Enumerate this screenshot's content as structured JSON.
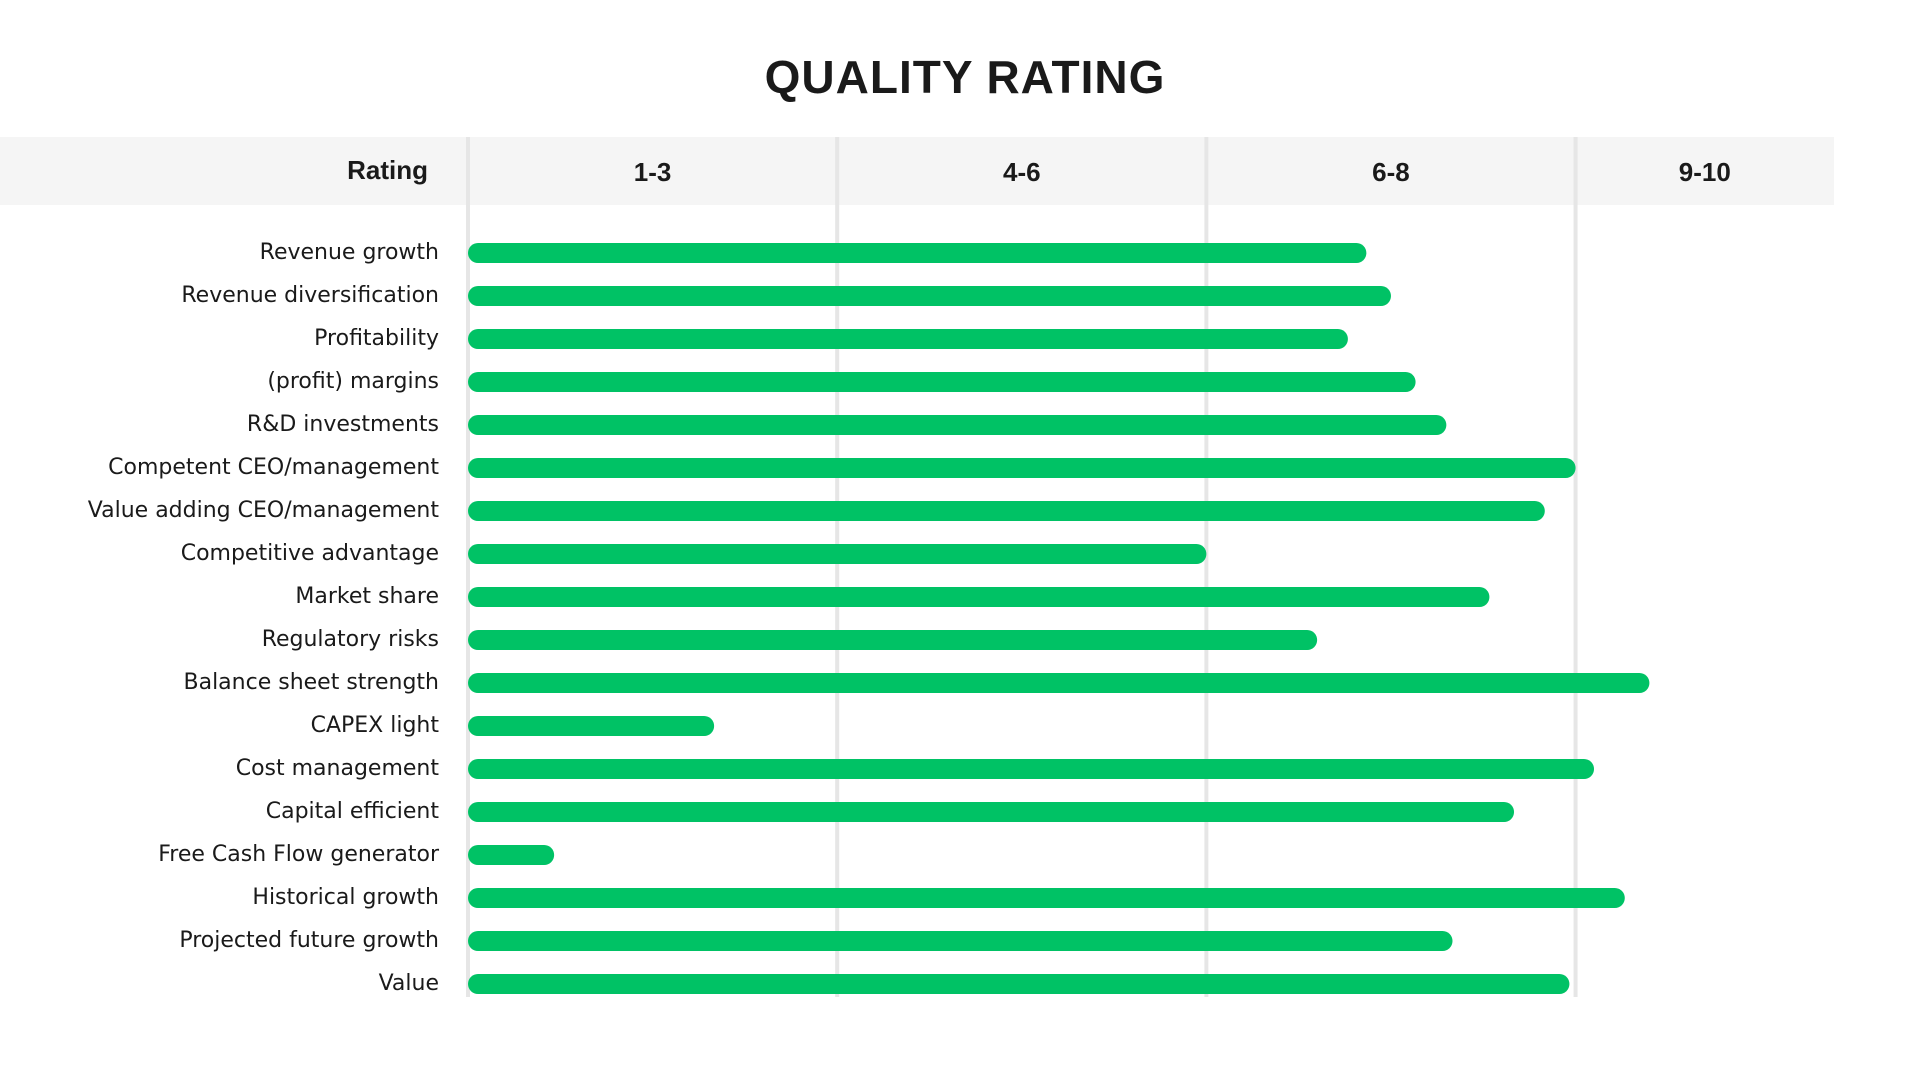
{
  "chart_data": {
    "type": "bar",
    "orientation": "horizontal",
    "title": "QUALITY RATING",
    "header_label": "Rating",
    "bands": [
      {
        "label": "1-3",
        "from": 0,
        "to": 3
      },
      {
        "label": "4-6",
        "from": 3,
        "to": 6
      },
      {
        "label": "6-8",
        "from": 6,
        "to": 9
      },
      {
        "label": "9-10",
        "from": 9,
        "to": 11.1
      }
    ],
    "xlim": [
      0,
      11.1
    ],
    "categories": [
      "Revenue growth",
      "Revenue diversification",
      "Profitability",
      "(profit) margins",
      "R&D investments",
      "Competent CEO/management",
      "Value adding CEO/management",
      "Competitive advantage",
      "Market share",
      "Regulatory risks",
      "Balance sheet strength",
      "CAPEX light",
      "Cost management",
      "Capital efficient",
      "Free Cash Flow generator",
      "Historical growth",
      "Projected future growth",
      "Value"
    ],
    "values": [
      7.3,
      7.5,
      7.15,
      7.7,
      7.95,
      9.0,
      8.75,
      6.0,
      8.3,
      6.9,
      9.6,
      2.0,
      9.15,
      8.5,
      0.7,
      9.4,
      8.0,
      8.95
    ],
    "color": "#00c265",
    "grid": true
  }
}
